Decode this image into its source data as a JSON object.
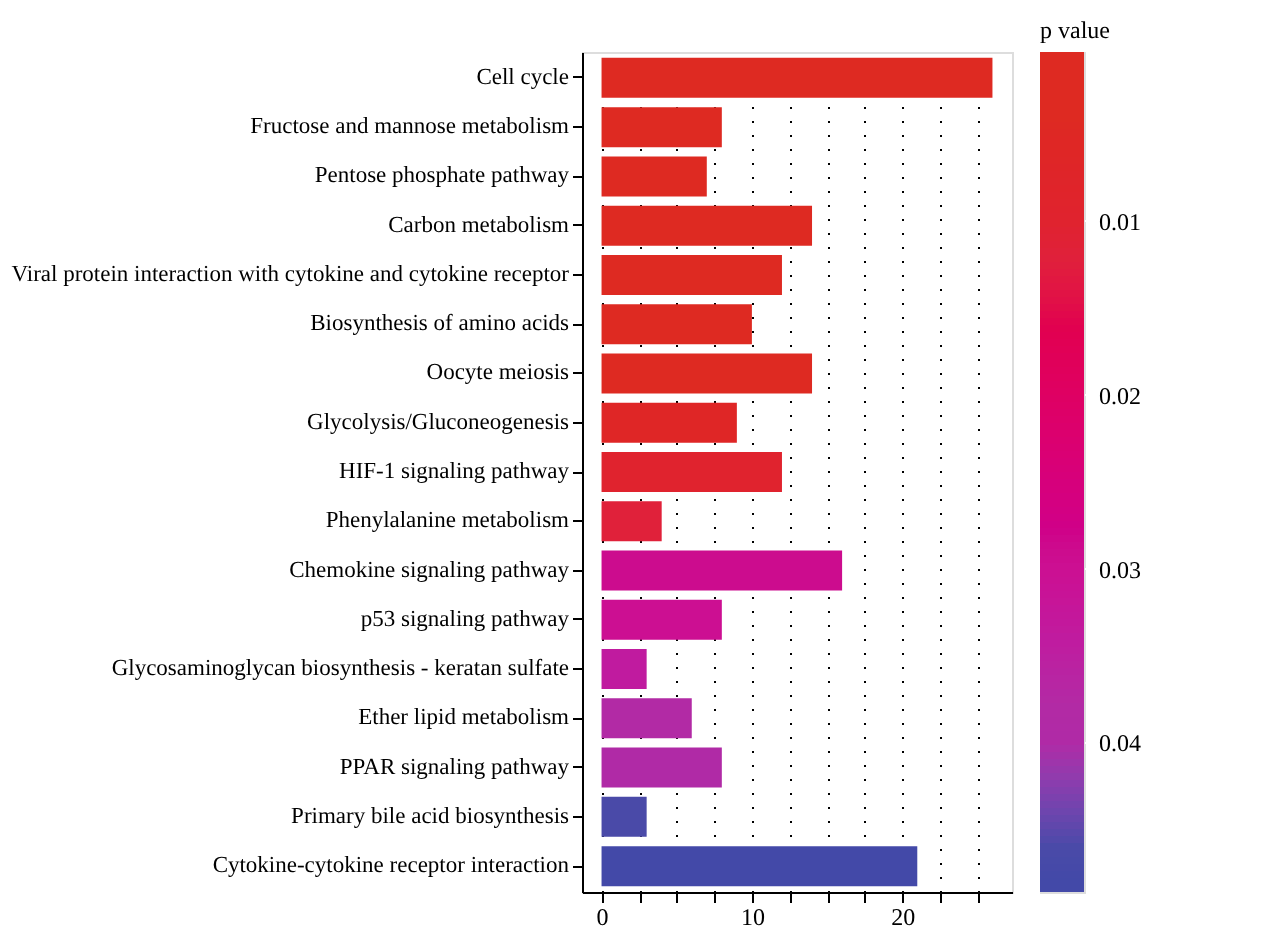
{
  "chart_data": {
    "type": "bar",
    "orientation": "horizontal",
    "legend_title": "p value",
    "categories": [
      "Cell cycle",
      "Fructose and mannose metabolism",
      "Pentose phosphate pathway",
      "Carbon metabolism",
      "Viral protein interaction with cytokine and cytokine receptor",
      "Biosynthesis of amino acids",
      "Oocyte meiosis",
      "Glycolysis/Gluconeogenesis",
      "HIF-1 signaling pathway",
      "Phenylalanine metabolism",
      "Chemokine signaling pathway",
      "p53 signaling pathway",
      "Glycosaminoglycan biosynthesis - keratan sulfate",
      "Ether lipid metabolism",
      "PPAR signaling pathway",
      "Primary bile acid biosynthesis",
      "Cytokine-cytokine receptor interaction"
    ],
    "values": [
      26,
      8,
      7,
      14,
      12,
      10,
      14,
      9,
      12,
      4,
      16,
      8,
      3,
      6,
      8,
      3,
      21
    ],
    "cvalues": [
      0.004,
      0.004,
      0.004,
      0.004,
      0.004,
      0.004,
      0.004,
      0.006,
      0.01,
      0.012,
      0.029,
      0.03,
      0.034,
      0.038,
      0.04,
      0.046,
      0.048
    ],
    "colors": [
      "#de2a22",
      "#de2a22",
      "#de2a22",
      "#de2a22",
      "#de2a22",
      "#de2a22",
      "#de2a22",
      "#df2626",
      "#e0232e",
      "#e0213a",
      "#cc0c8e",
      "#cc0f92",
      "#c01b9f",
      "#b22aa5",
      "#b02aa6",
      "#4a4aa8",
      "#4349a8"
    ],
    "clim": [
      0.0003,
      0.0486
    ],
    "cticks": [
      0.01,
      0.02,
      0.03,
      0.04
    ],
    "xlim": [
      -1.3,
      27.3
    ],
    "xticks": [
      0,
      {
        "value": 2.5,
        "label": null
      },
      {
        "value": 5,
        "label": null
      },
      {
        "value": 7.5,
        "label": null
      },
      10,
      {
        "value": 12.5,
        "label": null
      },
      {
        "value": 15,
        "label": null
      },
      {
        "value": 17.5,
        "label": null
      },
      20,
      {
        "value": 22.5,
        "label": null
      },
      {
        "value": 25,
        "label": null
      }
    ],
    "grid": "x",
    "line_style": "dotted"
  }
}
